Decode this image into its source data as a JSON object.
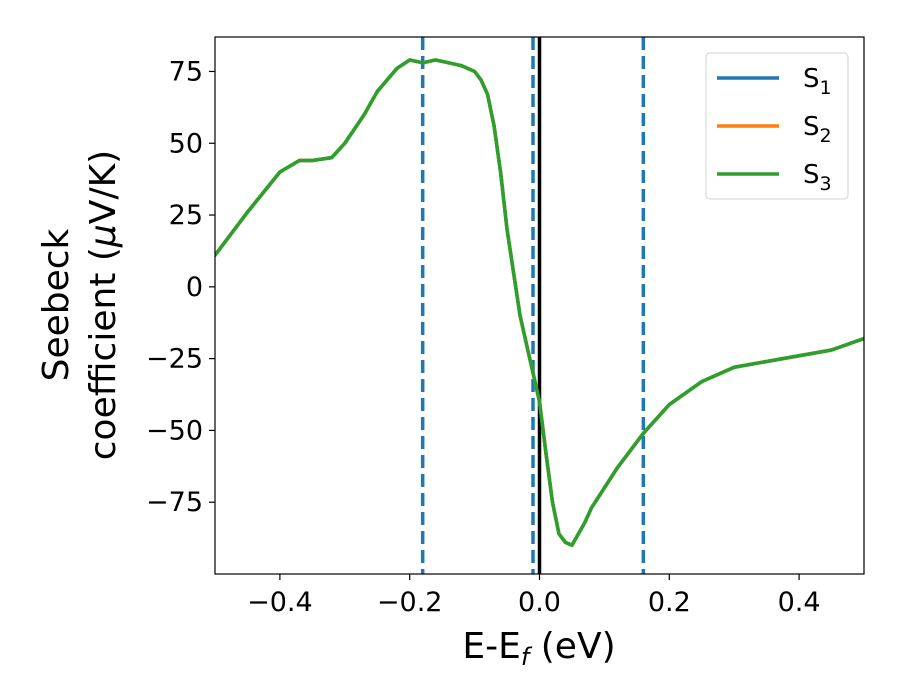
{
  "chart_data": {
    "type": "line",
    "title": "",
    "xlabel": {
      "main": "E-E",
      "sub": "f",
      "unit": " (eV)"
    },
    "ylabel": {
      "line1": "Seebeck",
      "line2": "coefficient  (",
      "mu": "μ",
      "unit": "V/K)"
    },
    "xlim": [
      -0.5,
      0.5
    ],
    "ylim": [
      -100,
      87
    ],
    "xticks": [
      -0.4,
      -0.2,
      0.0,
      0.2,
      0.4
    ],
    "xtick_labels": [
      "−0.4",
      "−0.2",
      "0.0",
      "0.2",
      "0.4"
    ],
    "yticks": [
      75,
      50,
      25,
      0,
      -25,
      -50,
      -75
    ],
    "ytick_labels": [
      "75",
      "50",
      "25",
      "0",
      "−25",
      "−50",
      "−75"
    ],
    "grid": false,
    "legend_position": "top-right",
    "vertical_lines": [
      {
        "x": -0.18,
        "style": "dashed",
        "color": "#1f77b4"
      },
      {
        "x": -0.01,
        "style": "dashed",
        "color": "#1f77b4"
      },
      {
        "x": 0.16,
        "style": "dashed",
        "color": "#1f77b4"
      },
      {
        "x": 0.0,
        "style": "solid",
        "color": "#000000"
      }
    ],
    "x": [
      -0.5,
      -0.45,
      -0.4,
      -0.37,
      -0.35,
      -0.32,
      -0.3,
      -0.27,
      -0.25,
      -0.22,
      -0.2,
      -0.18,
      -0.16,
      -0.14,
      -0.12,
      -0.1,
      -0.09,
      -0.08,
      -0.07,
      -0.06,
      -0.05,
      -0.04,
      -0.03,
      -0.02,
      -0.01,
      0.0,
      0.01,
      0.02,
      0.03,
      0.04,
      0.05,
      0.06,
      0.07,
      0.08,
      0.1,
      0.12,
      0.14,
      0.16,
      0.18,
      0.2,
      0.25,
      0.3,
      0.35,
      0.4,
      0.45,
      0.5
    ],
    "series": [
      {
        "name": "S",
        "sub": "1",
        "color": "#1f77b4",
        "values": [
          11,
          26,
          40,
          44,
          44,
          45,
          50,
          60,
          68,
          76,
          79,
          78,
          79,
          78,
          77,
          75,
          72,
          67,
          56,
          40,
          20,
          5,
          -10,
          -20,
          -30,
          -40,
          -58,
          -75,
          -86,
          -89,
          -90,
          -86,
          -82,
          -77,
          -70,
          -63,
          -57,
          -51,
          -46,
          -41,
          -33,
          -28,
          -26,
          -24,
          -22,
          -18
        ]
      },
      {
        "name": "S",
        "sub": "2",
        "color": "#ff7f0e",
        "values": [
          11,
          26,
          40,
          44,
          44,
          45,
          50,
          60,
          68,
          76,
          79,
          78,
          79,
          78,
          77,
          75,
          72,
          67,
          56,
          40,
          20,
          5,
          -10,
          -20,
          -30,
          -40,
          -58,
          -75,
          -86,
          -89,
          -90,
          -86,
          -82,
          -77,
          -70,
          -63,
          -57,
          -51,
          -46,
          -41,
          -33,
          -28,
          -26,
          -24,
          -22,
          -18
        ]
      },
      {
        "name": "S",
        "sub": "3",
        "color": "#2ca02c",
        "values": [
          11,
          26,
          40,
          44,
          44,
          45,
          50,
          60,
          68,
          76,
          79,
          78,
          79,
          78,
          77,
          75,
          72,
          67,
          56,
          40,
          20,
          5,
          -10,
          -20,
          -30,
          -40,
          -58,
          -75,
          -86,
          -89,
          -90,
          -86,
          -82,
          -77,
          -70,
          -63,
          -57,
          -51,
          -46,
          -41,
          -33,
          -28,
          -26,
          -24,
          -22,
          -18
        ]
      }
    ]
  }
}
